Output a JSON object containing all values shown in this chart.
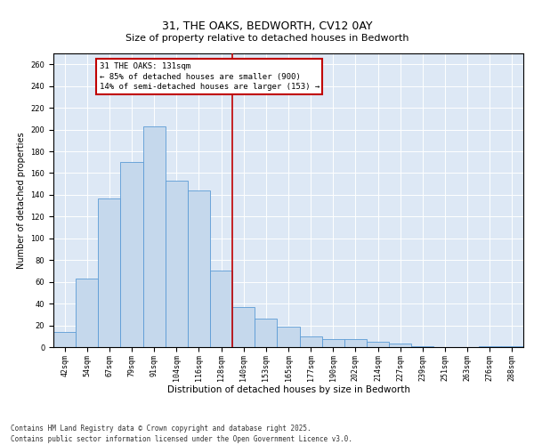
{
  "title": "31, THE OAKS, BEDWORTH, CV12 0AY",
  "subtitle": "Size of property relative to detached houses in Bedworth",
  "xlabel": "Distribution of detached houses by size in Bedworth",
  "ylabel": "Number of detached properties",
  "categories": [
    "42sqm",
    "54sqm",
    "67sqm",
    "79sqm",
    "91sqm",
    "104sqm",
    "116sqm",
    "128sqm",
    "140sqm",
    "153sqm",
    "165sqm",
    "177sqm",
    "190sqm",
    "202sqm",
    "214sqm",
    "227sqm",
    "239sqm",
    "251sqm",
    "263sqm",
    "276sqm",
    "288sqm"
  ],
  "values": [
    14,
    63,
    137,
    170,
    203,
    153,
    144,
    70,
    37,
    26,
    19,
    10,
    7,
    7,
    5,
    3,
    1,
    0,
    0,
    1,
    1
  ],
  "bar_color": "#c5d8ec",
  "bar_edge_color": "#5b9bd5",
  "vline_x": 7.5,
  "vline_color": "#c00000",
  "annotation_text": "31 THE OAKS: 131sqm\n← 85% of detached houses are smaller (900)\n14% of semi-detached houses are larger (153) →",
  "annotation_box_color": "#c00000",
  "annotation_text_color": "#000000",
  "ylim": [
    0,
    270
  ],
  "yticks": [
    0,
    20,
    40,
    60,
    80,
    100,
    120,
    140,
    160,
    180,
    200,
    220,
    240,
    260
  ],
  "footer_text": "Contains HM Land Registry data © Crown copyright and database right 2025.\nContains public sector information licensed under the Open Government Licence v3.0.",
  "background_color": "#dde8f5",
  "title_fontsize": 9,
  "xlabel_fontsize": 7.5,
  "ylabel_fontsize": 7,
  "tick_fontsize": 6,
  "footer_fontsize": 5.5,
  "annotation_fontsize": 6.5
}
